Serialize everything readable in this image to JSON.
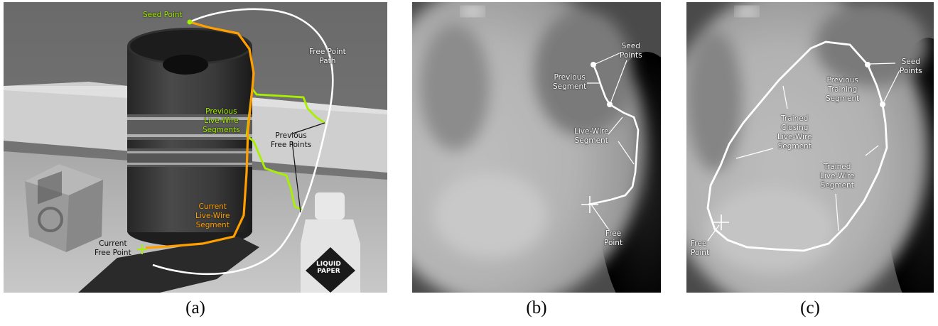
{
  "figure": {
    "panels": [
      {
        "caption": "(a)",
        "labels": {
          "seed_point": "Seed Point",
          "free_point_path": [
            "Free Point",
            "Path"
          ],
          "previous_live_wire_segments": [
            "Previous",
            "Live-Wire",
            "Segments"
          ],
          "previous_free_points": [
            "Previous",
            "Free Points"
          ],
          "current_live_wire_segment": [
            "Current",
            "Live-Wire",
            "Segment"
          ],
          "current_free_point": [
            "Current",
            "Free Point"
          ]
        },
        "scene_text": {
          "bottle_label": [
            "LIQUID",
            "PAPER"
          ]
        }
      },
      {
        "caption": "(b)",
        "labels": {
          "seed_points": [
            "Seed",
            "Points"
          ],
          "previous_segment": [
            "Previous",
            "Segment"
          ],
          "live_wire_segment": [
            "Live-Wire",
            "Segment"
          ],
          "free_point": [
            "Free",
            "Point"
          ]
        }
      },
      {
        "caption": "(c)",
        "labels": {
          "seed_points": [
            "Seed",
            "Points"
          ],
          "previous_training_segment": [
            "Previous",
            "Training",
            "Segment"
          ],
          "trained_closing_segment": [
            "Trained",
            "Closing",
            "Live-Wire",
            "Segment"
          ],
          "trained_live_wire_segment": [
            "Trained",
            "Live-Wire",
            "Segment"
          ],
          "free_point": [
            "Free",
            "Point"
          ]
        }
      }
    ],
    "colors": {
      "previous_segments": "#a8f000",
      "current_segment": "#ffa000",
      "path": "#ffffff"
    }
  }
}
